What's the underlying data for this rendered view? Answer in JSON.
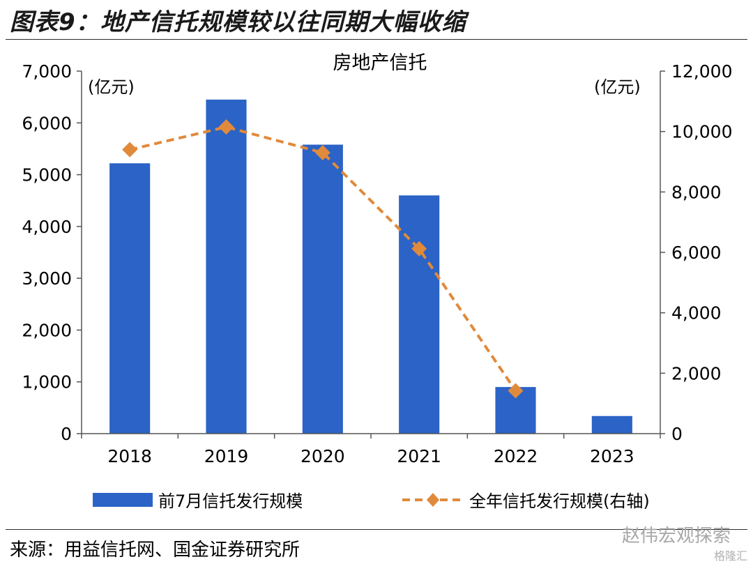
{
  "figure_title": "图表9：地产信托规模较以往同期大幅收缩",
  "source": "来源：用益信托网、国金证券研究所",
  "watermark": "赵伟宏观探索",
  "watermark_sub": "格隆汇",
  "colors": {
    "bar": "#2B63C6",
    "line": "#E08A3C"
  },
  "chart_data": {
    "type": "bar",
    "title": "房地产信托",
    "categories": [
      "2018",
      "2019",
      "2020",
      "2021",
      "2022",
      "2023"
    ],
    "y_left": {
      "unit_label": "(亿元)",
      "ylim": [
        0,
        7000
      ],
      "ticks": [
        0,
        1000,
        2000,
        3000,
        4000,
        5000,
        6000,
        7000
      ],
      "tick_labels": [
        "0",
        "1,000",
        "2,000",
        "3,000",
        "4,000",
        "5,000",
        "6,000",
        "7,000"
      ]
    },
    "y_right": {
      "unit_label": "(亿元)",
      "ylim": [
        0,
        12000
      ],
      "ticks": [
        0,
        2000,
        4000,
        6000,
        8000,
        10000,
        12000
      ],
      "tick_labels": [
        "0",
        "2,000",
        "4,000",
        "6,000",
        "8,000",
        "10,000",
        "12,000"
      ]
    },
    "series": [
      {
        "name": "前7月信托发行规模",
        "type": "bar",
        "axis": "left",
        "values": [
          5220,
          6450,
          5580,
          4600,
          900,
          340
        ]
      },
      {
        "name": "全年信托发行规模(右轴)",
        "type": "line",
        "axis": "right",
        "style": "dashed",
        "marker": "diamond",
        "values": [
          9400,
          10150,
          9300,
          6120,
          1420,
          null
        ]
      }
    ],
    "grid": false,
    "legend_position": "bottom"
  }
}
